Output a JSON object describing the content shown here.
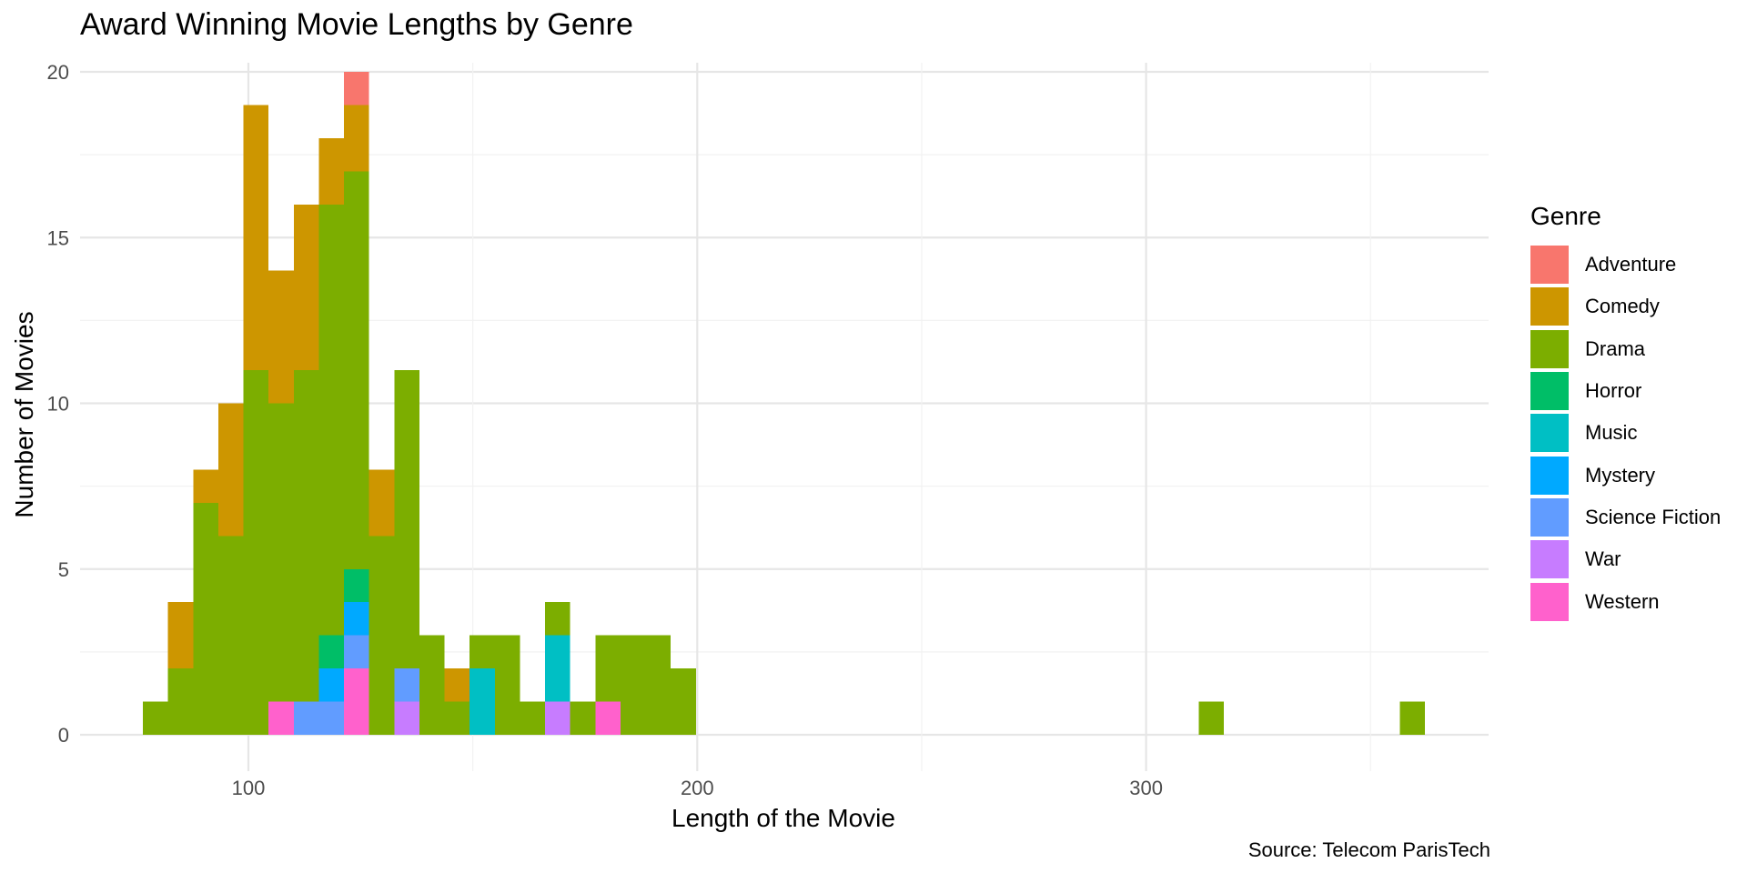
{
  "chart_data": {
    "type": "bar",
    "stacked": true,
    "title": "Award Winning Movie Lengths by Genre",
    "xlabel": "Length of the Movie",
    "ylabel": "Number of Movies",
    "caption": "Source: Telecom ParisTech",
    "legend_title": "Genre",
    "legend_position": "right",
    "grid": true,
    "xlim": [
      62.5,
      376.3
    ],
    "ylim": [
      0,
      20
    ],
    "bin_width": 5.6,
    "x_ticks": [
      100,
      200,
      300
    ],
    "y_ticks": [
      0,
      5,
      10,
      15,
      20
    ],
    "genres": [
      {
        "name": "Adventure",
        "color": "#F8766D"
      },
      {
        "name": "Comedy",
        "color": "#CD9600"
      },
      {
        "name": "Drama",
        "color": "#7CAE00"
      },
      {
        "name": "Horror",
        "color": "#00BE67"
      },
      {
        "name": "Music",
        "color": "#00BFC4"
      },
      {
        "name": "Mystery",
        "color": "#00A9FF"
      },
      {
        "name": "Science Fiction",
        "color": "#619CFF"
      },
      {
        "name": "War",
        "color": "#C77CFF"
      },
      {
        "name": "Western",
        "color": "#FF61CC"
      }
    ],
    "bins": [
      {
        "x": 79.3,
        "counts": {
          "Drama": 1
        }
      },
      {
        "x": 84.9,
        "counts": {
          "Drama": 2,
          "Comedy": 2
        }
      },
      {
        "x": 90.5,
        "counts": {
          "Drama": 7,
          "Comedy": 1
        }
      },
      {
        "x": 96.1,
        "counts": {
          "Drama": 6,
          "Comedy": 4
        }
      },
      {
        "x": 101.7,
        "counts": {
          "Drama": 11,
          "Comedy": 8
        }
      },
      {
        "x": 107.3,
        "counts": {
          "Western": 1,
          "Drama": 9,
          "Comedy": 4
        }
      },
      {
        "x": 112.9,
        "counts": {
          "Science Fiction": 1,
          "Drama": 10,
          "Comedy": 5
        }
      },
      {
        "x": 118.5,
        "counts": {
          "Science Fiction": 1,
          "Mystery": 1,
          "Horror": 1,
          "Drama": 13,
          "Comedy": 2
        }
      },
      {
        "x": 124.1,
        "counts": {
          "Western": 2,
          "Science Fiction": 1,
          "Mystery": 1,
          "Horror": 1,
          "Drama": 12,
          "Comedy": 2,
          "Adventure": 1
        }
      },
      {
        "x": 129.7,
        "counts": {
          "Drama": 6,
          "Comedy": 2
        }
      },
      {
        "x": 135.3,
        "counts": {
          "War": 1,
          "Science Fiction": 1,
          "Drama": 9
        }
      },
      {
        "x": 140.9,
        "counts": {
          "Drama": 3
        }
      },
      {
        "x": 146.5,
        "counts": {
          "Drama": 1,
          "Comedy": 1
        }
      },
      {
        "x": 152.1,
        "counts": {
          "Music": 2,
          "Drama": 1
        }
      },
      {
        "x": 157.7,
        "counts": {
          "Drama": 3
        }
      },
      {
        "x": 163.3,
        "counts": {
          "Drama": 1
        }
      },
      {
        "x": 168.9,
        "counts": {
          "War": 1,
          "Music": 2,
          "Drama": 1
        }
      },
      {
        "x": 174.5,
        "counts": {
          "Drama": 1
        }
      },
      {
        "x": 180.1,
        "counts": {
          "Western": 1,
          "Drama": 2
        }
      },
      {
        "x": 185.7,
        "counts": {
          "Drama": 3
        }
      },
      {
        "x": 191.3,
        "counts": {
          "Drama": 3
        }
      },
      {
        "x": 196.9,
        "counts": {
          "Drama": 2
        }
      },
      {
        "x": 314.5,
        "counts": {
          "Drama": 1
        }
      },
      {
        "x": 359.3,
        "counts": {
          "Drama": 1
        }
      }
    ]
  }
}
